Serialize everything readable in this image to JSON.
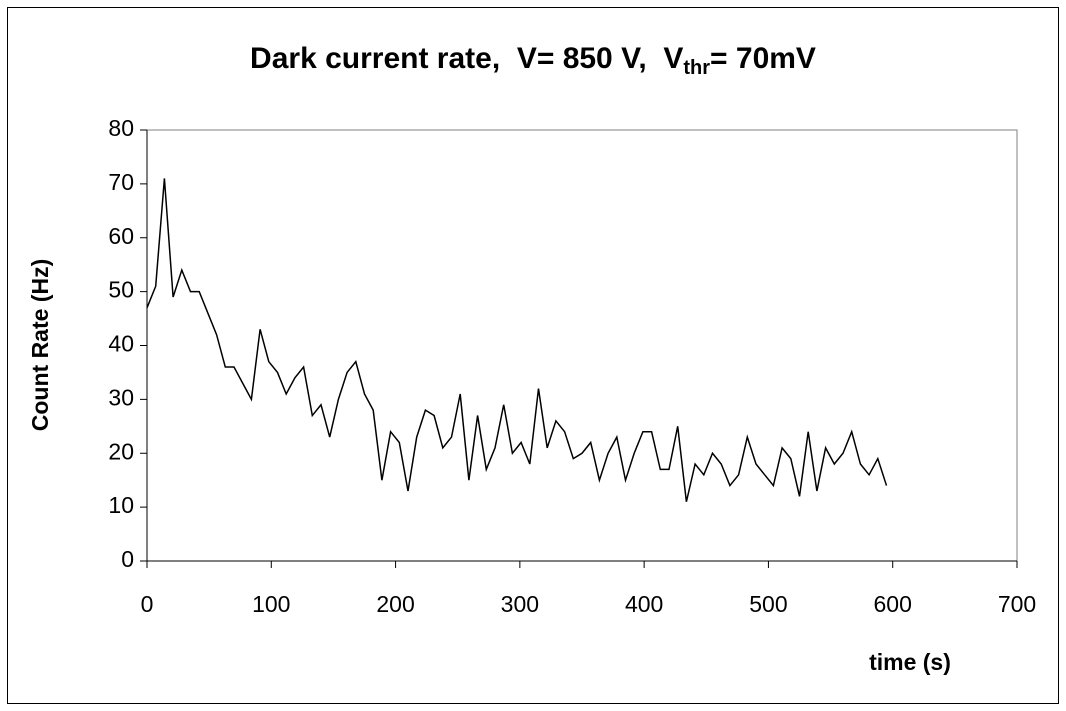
{
  "chart_data": {
    "type": "line",
    "title": "Dark current rate,  V= 850 V,  V",
    "title_subscript": "thr",
    "title_suffix": "= 70mV",
    "x_label": "time (s)",
    "y_label": "Count Rate (Hz)",
    "x": [
      0,
      7,
      14,
      21,
      28,
      35,
      42,
      49,
      56,
      63,
      70,
      77,
      84,
      91,
      98,
      105,
      112,
      119,
      126,
      133,
      140,
      147,
      154,
      161,
      168,
      175,
      182,
      189,
      196,
      203,
      210,
      217,
      224,
      231,
      238,
      245,
      252,
      259,
      266,
      273,
      280,
      287,
      294,
      301,
      308,
      315,
      322,
      329,
      336,
      343,
      350,
      357,
      364,
      371,
      378,
      385,
      392,
      399,
      406,
      413,
      420,
      427,
      434,
      441,
      448,
      455,
      462,
      469,
      476,
      483,
      490,
      497,
      504,
      511,
      518,
      525,
      532,
      539,
      546,
      553,
      560,
      567,
      574,
      581,
      588,
      595
    ],
    "series": [
      {
        "color": "#000000",
        "values": [
          47,
          51,
          71,
          49,
          54,
          50,
          50,
          46,
          42,
          36,
          36,
          33,
          30,
          43,
          37,
          35,
          31,
          34,
          36,
          27,
          29,
          23,
          30,
          35,
          37,
          31,
          28,
          15,
          24,
          22,
          13,
          23,
          28,
          27,
          21,
          23,
          31,
          15,
          27,
          17,
          21,
          29,
          20,
          22,
          18,
          32,
          21,
          26,
          24,
          19,
          20,
          22,
          15,
          20,
          23,
          15,
          20,
          24,
          24,
          17,
          17,
          25,
          11,
          18,
          16,
          20,
          18,
          14,
          16,
          23,
          18,
          16,
          14,
          21,
          19,
          12,
          24,
          13,
          21,
          18,
          20,
          24,
          18,
          16,
          19,
          14
        ]
      }
    ],
    "xlim": [
      0,
      700
    ],
    "xticks": [
      0,
      100,
      200,
      300,
      400,
      500,
      600,
      700
    ],
    "ylim": [
      0,
      80
    ],
    "yticks": [
      0,
      10,
      20,
      30,
      40,
      50,
      60,
      70,
      80
    ],
    "grid": false
  }
}
